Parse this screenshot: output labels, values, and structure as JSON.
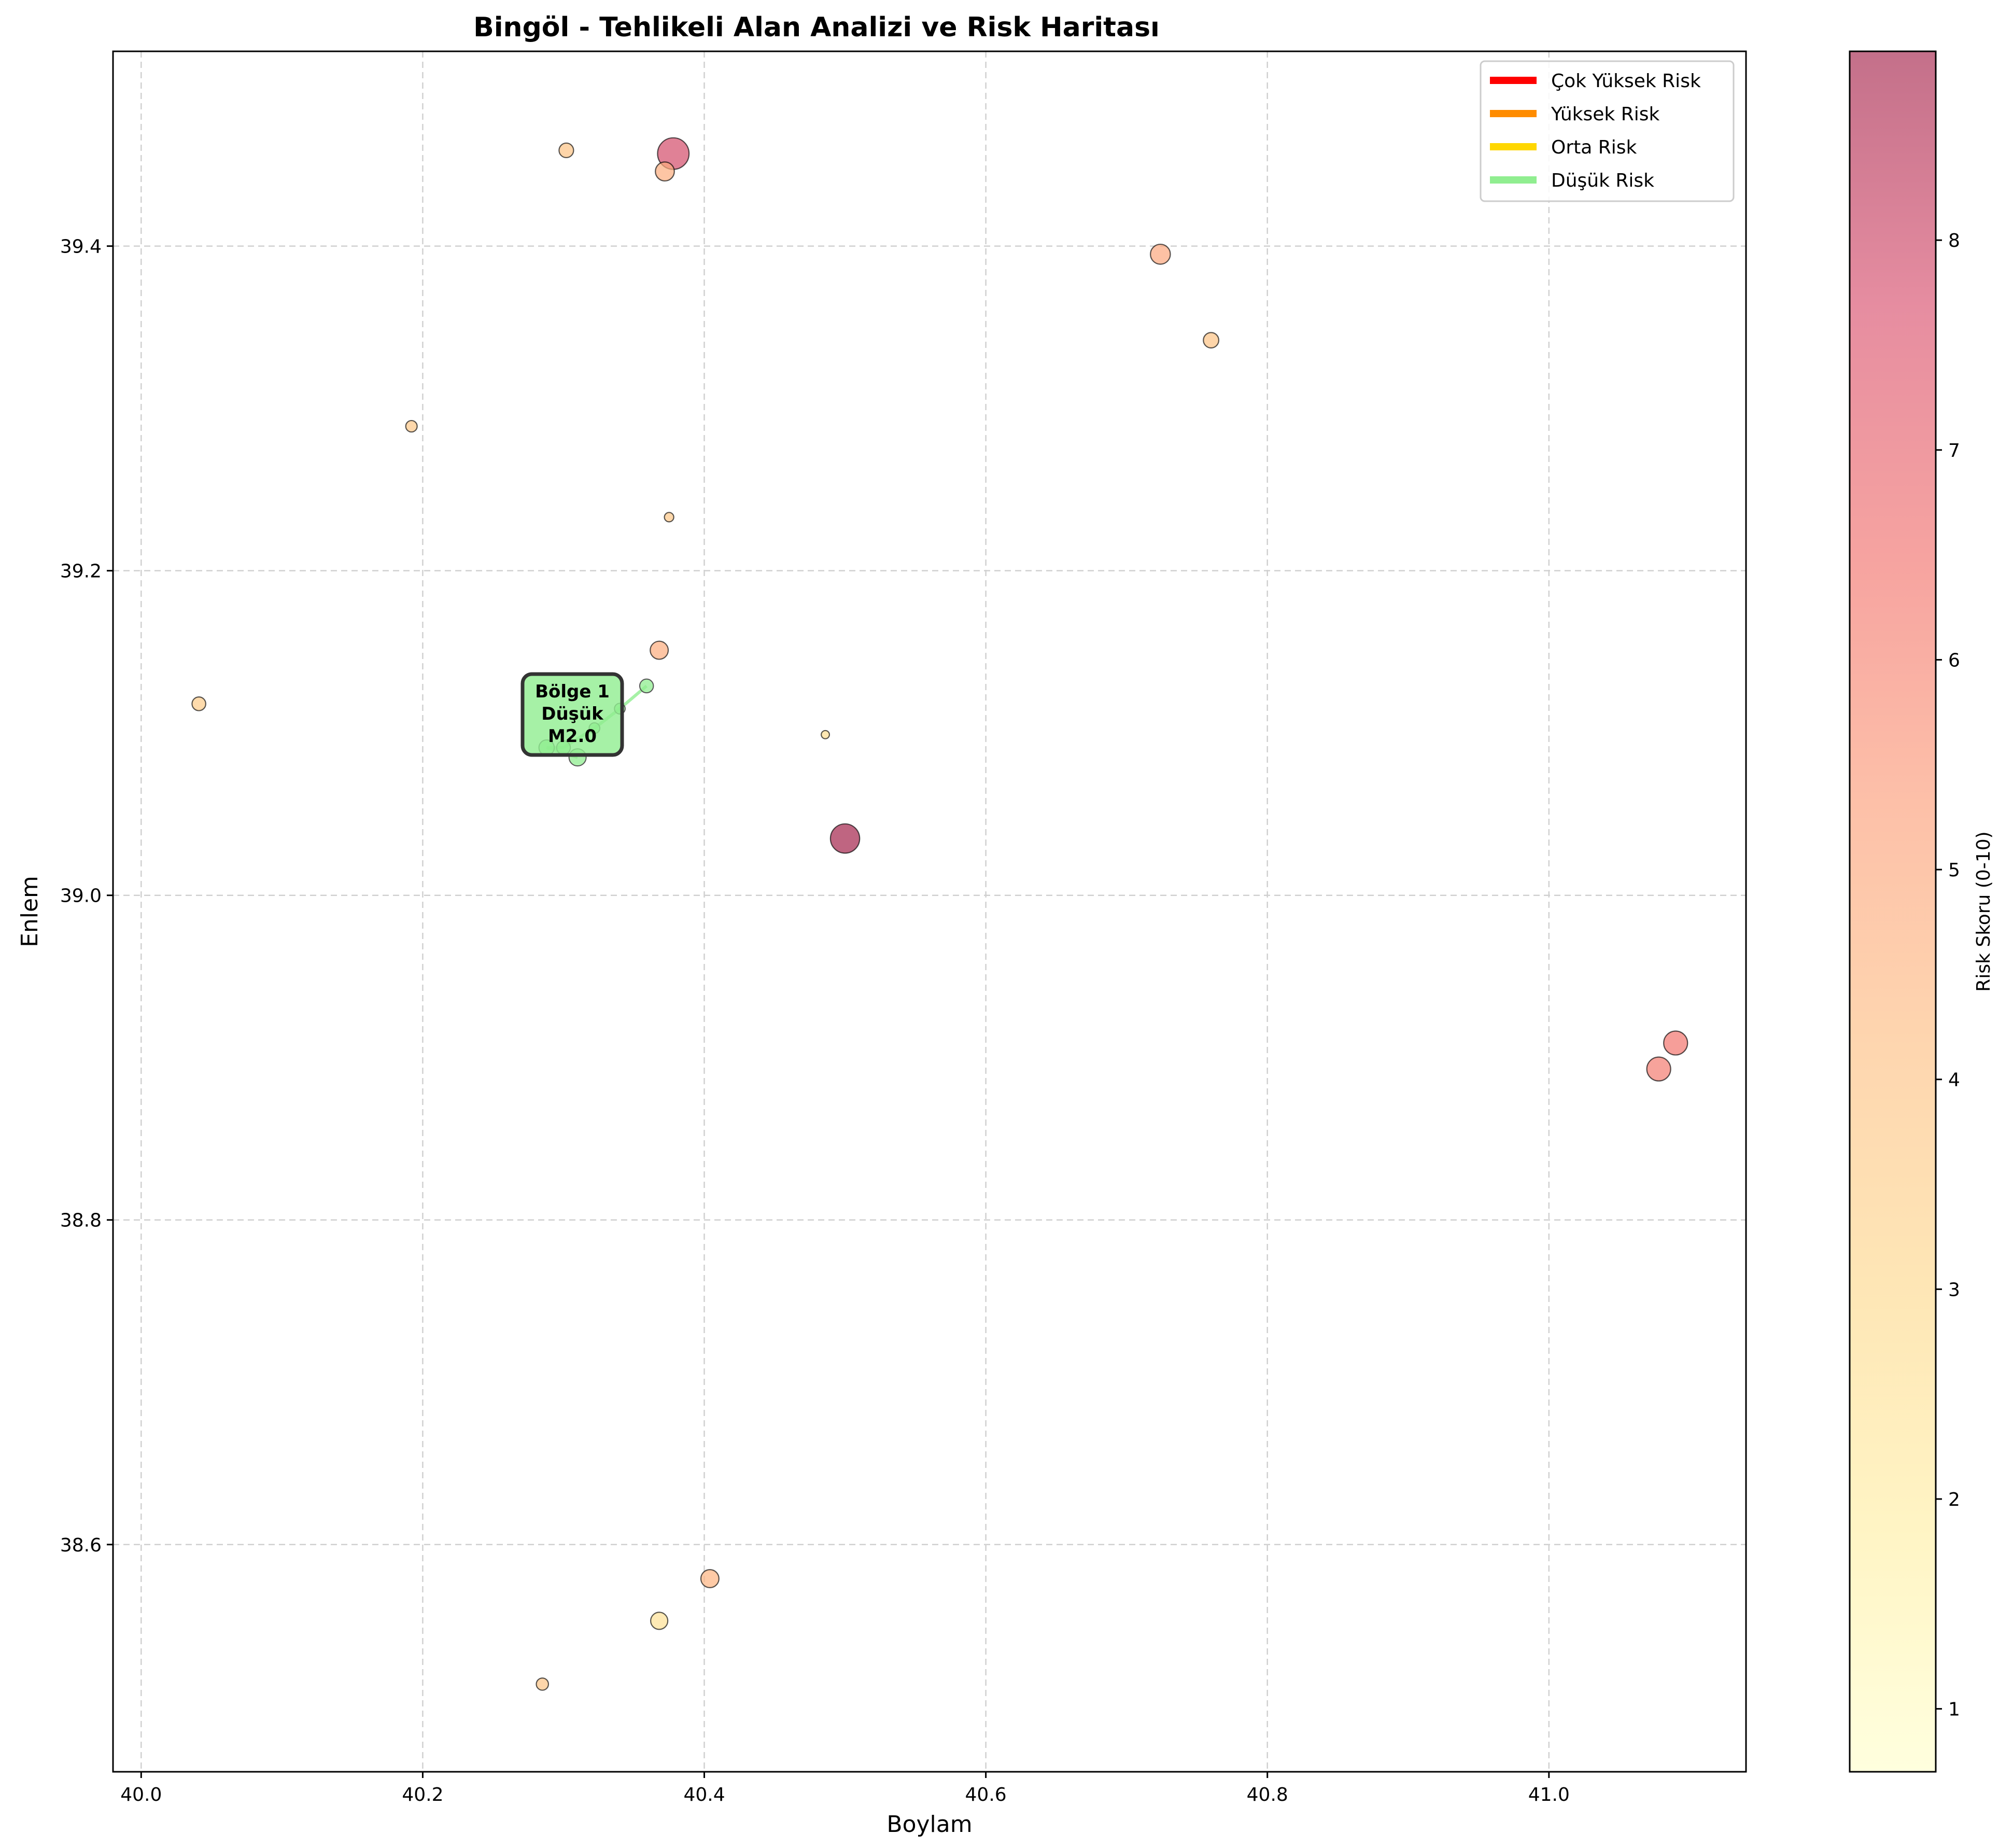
{
  "chart_data": {
    "type": "scatter",
    "title": "Bingöl - Tehlikeli Alan Analizi ve Risk Haritası",
    "xlabel": "Boylam",
    "ylabel": "Enlem",
    "xlim": [
      39.98,
      41.14
    ],
    "ylim": [
      38.46,
      39.52
    ],
    "xticks": [
      40.0,
      40.2,
      40.4,
      40.6,
      40.8,
      41.0
    ],
    "yticks": [
      38.6,
      38.8,
      39.0,
      39.2,
      39.4
    ],
    "xtick_labels": [
      "40.0",
      "40.2",
      "40.4",
      "40.6",
      "40.8",
      "41.0"
    ],
    "ytick_labels": [
      "38.6",
      "38.8",
      "39.0",
      "39.2",
      "39.4"
    ],
    "grid": true,
    "legend_position": "top-right",
    "legend": [
      {
        "label": "Çok Yüksek Risk",
        "color": "#ff0000"
      },
      {
        "label": "Yüksek Risk",
        "color": "#ff8c00"
      },
      {
        "label": "Orta Risk",
        "color": "#ffd700"
      },
      {
        "label": "Düşük Risk",
        "color": "#90ee90"
      }
    ],
    "colorbar": {
      "label": "Risk Skoru (0-10)",
      "min": 0.7,
      "max": 8.9,
      "ticks": [
        1,
        2,
        3,
        4,
        5,
        6,
        7,
        8
      ],
      "tick_labels": [
        "1",
        "2",
        "3",
        "4",
        "5",
        "6",
        "7",
        "8"
      ]
    },
    "points": [
      {
        "lon": 40.378,
        "lat": 39.457,
        "risk": 7.8,
        "mag": 4.6
      },
      {
        "lon": 40.372,
        "lat": 39.446,
        "risk": 4.8,
        "mag": 3.4
      },
      {
        "lon": 40.302,
        "lat": 39.459,
        "risk": 4.0,
        "mag": 2.9
      },
      {
        "lon": 40.724,
        "lat": 39.395,
        "risk": 5.0,
        "mag": 3.5
      },
      {
        "lon": 40.76,
        "lat": 39.342,
        "risk": 4.0,
        "mag": 3.0
      },
      {
        "lon": 40.192,
        "lat": 39.289,
        "risk": 3.8,
        "mag": 2.5
      },
      {
        "lon": 40.375,
        "lat": 39.233,
        "risk": 3.8,
        "mag": 2.2
      },
      {
        "lon": 40.368,
        "lat": 39.151,
        "risk": 4.8,
        "mag": 3.3
      },
      {
        "lon": 40.041,
        "lat": 39.118,
        "risk": 3.6,
        "mag": 2.8
      },
      {
        "lon": 40.486,
        "lat": 39.099,
        "risk": 2.8,
        "mag": 2.0
      },
      {
        "lon": 40.5,
        "lat": 39.035,
        "risk": 8.9,
        "mag": 4.4
      },
      {
        "lon": 41.09,
        "lat": 38.909,
        "risk": 6.4,
        "mag": 3.9
      },
      {
        "lon": 41.078,
        "lat": 38.893,
        "risk": 6.2,
        "mag": 3.9
      },
      {
        "lon": 40.404,
        "lat": 38.579,
        "risk": 4.6,
        "mag": 3.3
      },
      {
        "lon": 40.368,
        "lat": 38.553,
        "risk": 2.6,
        "mag": 3.2
      },
      {
        "lon": 40.285,
        "lat": 38.514,
        "risk": 3.9,
        "mag": 2.6
      }
    ],
    "cluster": {
      "line_color": "#90ee90",
      "points": [
        {
          "lon": 40.359,
          "lat": 39.129,
          "mag": 2.8
        },
        {
          "lon": 40.34,
          "lat": 39.115,
          "mag": 2.4
        },
        {
          "lon": 40.322,
          "lat": 39.103,
          "mag": 2.4
        },
        {
          "lon": 40.3,
          "lat": 39.091,
          "mag": 2.8
        },
        {
          "lon": 40.288,
          "lat": 39.091,
          "mag": 3.0
        },
        {
          "lon": 40.31,
          "lat": 39.085,
          "mag": 3.2
        }
      ],
      "annotation": {
        "lon": 40.312,
        "lat": 39.104,
        "lines": [
          "Bölge 1",
          "Düşük",
          "M2.0"
        ]
      }
    }
  }
}
